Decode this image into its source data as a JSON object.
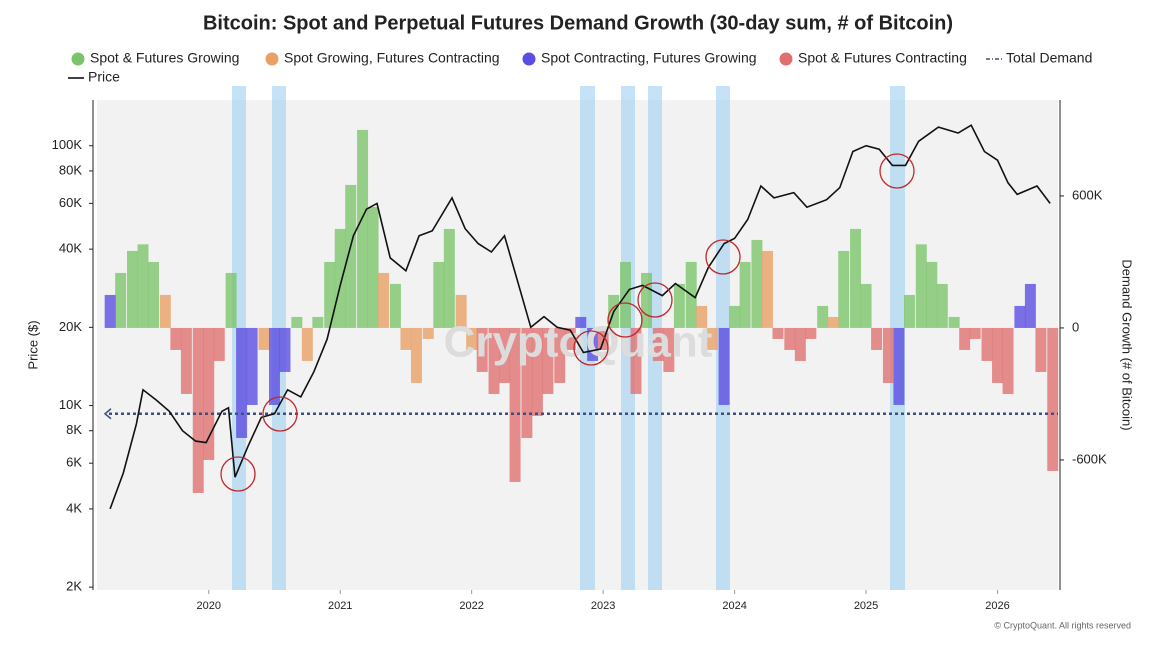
{
  "chart_data": {
    "type": "combo",
    "title": "Bitcoin: Spot and Perpetual Futures Demand Growth (30-day sum, # of Bitcoin)",
    "ylabel": "Price ($)",
    "y2label": "Demand Growth (# of Bitcoin)",
    "watermark": "CryptoQuant",
    "footer": "© CryptoQuant. All rights reserved",
    "xlim": [
      2019.15,
      2026.46
    ],
    "xticks": [
      2020,
      2021,
      2022,
      2023,
      2024,
      2025,
      2026
    ],
    "log_y": true,
    "ylim": [
      1950,
      150000
    ],
    "yticks": [
      {
        "value": 2000,
        "label": "2K"
      },
      {
        "value": 4000,
        "label": "4K"
      },
      {
        "value": 6000,
        "label": "6K"
      },
      {
        "value": 8000,
        "label": "8K"
      },
      {
        "value": 10000,
        "label": "10K"
      },
      {
        "value": 20000,
        "label": "20K"
      },
      {
        "value": 40000,
        "label": "40K"
      },
      {
        "value": 60000,
        "label": "60K"
      },
      {
        "value": 80000,
        "label": "80K"
      },
      {
        "value": 100000,
        "label": "100K"
      }
    ],
    "y2lim": [
      -1191000,
      1036000
    ],
    "y2ticks": [
      {
        "value": -600000,
        "label": "-600K"
      },
      0,
      {
        "value": 600000,
        "label": "600K"
      }
    ],
    "series": [
      {
        "name": "Spot & Futures Growing",
        "type": "bar",
        "axis": "y2",
        "color": "#7cc46c",
        "x": [
          2019.33,
          2019.42,
          2019.5,
          2019.58,
          2020.17,
          2020.67,
          2020.83,
          2020.92,
          2021.0,
          2021.08,
          2021.17,
          2021.25,
          2021.42,
          2021.75,
          2021.83,
          2023.08,
          2023.17,
          2023.33,
          2023.58,
          2023.67,
          2024.0,
          2024.08,
          2024.17,
          2024.67,
          2024.83,
          2024.92,
          2025.0,
          2025.33,
          2025.42,
          2025.5,
          2025.58,
          2025.67
        ],
        "values": [
          250000,
          350000,
          380000,
          300000,
          250000,
          50000,
          50000,
          300000,
          450000,
          650000,
          900000,
          550000,
          200000,
          300000,
          450000,
          150000,
          300000,
          250000,
          200000,
          300000,
          100000,
          300000,
          400000,
          100000,
          350000,
          450000,
          200000,
          150000,
          380000,
          300000,
          200000,
          50000
        ]
      },
      {
        "name": "Spot Growing, Futures Contracting",
        "type": "bar",
        "axis": "y2",
        "color": "#e8a065",
        "x": [
          2019.67,
          2020.42,
          2020.75,
          2021.33,
          2021.5,
          2021.58,
          2021.67,
          2021.92,
          2022.0,
          2023.75,
          2023.83,
          2024.25,
          2024.75
        ],
        "values": [
          150000,
          -100000,
          -150000,
          250000,
          -100000,
          -250000,
          -50000,
          150000,
          -100000,
          100000,
          -100000,
          350000,
          50000
        ]
      },
      {
        "name": "Spot Contracting, Futures Growing",
        "type": "bar",
        "axis": "y2",
        "color": "#5b4ee0",
        "x": [
          2019.25,
          2020.25,
          2020.33,
          2020.5,
          2020.58,
          2022.83,
          2022.92,
          2023.92,
          2025.25,
          2026.17,
          2026.25
        ],
        "values": [
          150000,
          -500000,
          -350000,
          -350000,
          -200000,
          50000,
          -150000,
          -350000,
          -350000,
          100000,
          200000
        ]
      },
      {
        "name": "Spot & Futures Contracting",
        "type": "bar",
        "axis": "y2",
        "color": "#e07070",
        "x": [
          2019.75,
          2019.83,
          2019.92,
          2020.0,
          2020.08,
          2022.08,
          2022.17,
          2022.25,
          2022.33,
          2022.42,
          2022.5,
          2022.58,
          2022.67,
          2022.75,
          2023.0,
          2023.25,
          2023.42,
          2023.5,
          2024.33,
          2024.42,
          2024.5,
          2024.58,
          2025.08,
          2025.17,
          2025.75,
          2025.83,
          2025.92,
          2026.0,
          2026.08,
          2026.33,
          2026.42
        ],
        "values": [
          -100000,
          -300000,
          -750000,
          -600000,
          -150000,
          -200000,
          -300000,
          -250000,
          -700000,
          -500000,
          -400000,
          -300000,
          -250000,
          -100000,
          -100000,
          -300000,
          -150000,
          -200000,
          -50000,
          -100000,
          -150000,
          -50000,
          -100000,
          -250000,
          -100000,
          -50000,
          -150000,
          -250000,
          -300000,
          -200000,
          -650000
        ]
      },
      {
        "name": "Total Demand",
        "type": "hline",
        "axis": "y2",
        "color": "#3d4f7c",
        "values": [
          -390000
        ]
      },
      {
        "name": "Price",
        "type": "line",
        "axis": "y",
        "color": "#111111",
        "x": [
          2019.25,
          2019.35,
          2019.45,
          2019.5,
          2019.6,
          2019.7,
          2019.8,
          2019.9,
          2019.98,
          2020.1,
          2020.15,
          2020.2,
          2020.3,
          2020.4,
          2020.5,
          2020.6,
          2020.7,
          2020.8,
          2020.9,
          2021.0,
          2021.1,
          2021.2,
          2021.28,
          2021.38,
          2021.5,
          2021.6,
          2021.7,
          2021.85,
          2021.95,
          2022.05,
          2022.15,
          2022.25,
          2022.35,
          2022.45,
          2022.55,
          2022.65,
          2022.75,
          2022.85,
          2022.98,
          2023.08,
          2023.2,
          2023.3,
          2023.45,
          2023.55,
          2023.7,
          2023.8,
          2023.92,
          2024.0,
          2024.1,
          2024.2,
          2024.3,
          2024.45,
          2024.55,
          2024.7,
          2024.8,
          2024.9,
          2025.0,
          2025.1,
          2025.2,
          2025.3,
          2025.4,
          2025.55,
          2025.7,
          2025.8,
          2025.9,
          2026.0,
          2026.08,
          2026.15,
          2026.3,
          2026.4
        ],
        "values": [
          4000,
          5500,
          8500,
          11500,
          10500,
          9500,
          8000,
          7300,
          7200,
          9500,
          9800,
          5300,
          7000,
          9000,
          9300,
          11500,
          10800,
          13500,
          18000,
          29000,
          45000,
          57000,
          60000,
          37000,
          33000,
          45000,
          47000,
          63000,
          48000,
          42000,
          39000,
          45000,
          30000,
          20000,
          22000,
          20000,
          19500,
          16000,
          16500,
          23000,
          28000,
          29000,
          26500,
          29500,
          26000,
          34000,
          42000,
          44000,
          52000,
          70000,
          63000,
          66000,
          58000,
          62000,
          69000,
          95000,
          100000,
          97000,
          84000,
          84000,
          104000,
          118000,
          112000,
          120000,
          95000,
          88000,
          72000,
          65000,
          70000,
          60000
        ]
      }
    ]
  }
}
